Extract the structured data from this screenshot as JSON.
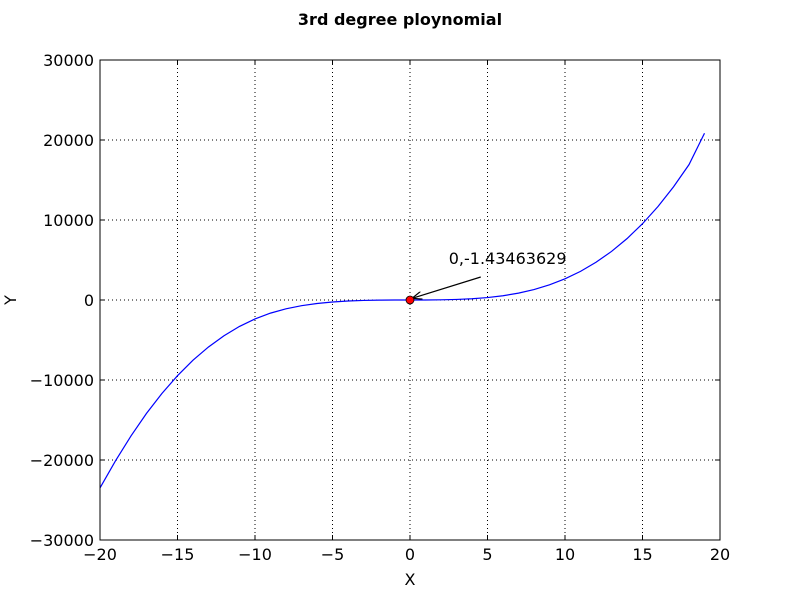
{
  "chart_data": {
    "type": "line",
    "title": "3rd degree ploynomial",
    "xlabel": "X",
    "ylabel": "Y",
    "xlim": [
      -20,
      20
    ],
    "ylim": [
      -30000,
      30000
    ],
    "grid": true,
    "xticks": [
      -20,
      -15,
      -10,
      -5,
      0,
      5,
      10,
      15,
      20
    ],
    "yticks": [
      -30000,
      -20000,
      -10000,
      0,
      10000,
      20000,
      30000
    ],
    "xtick_labels": [
      "−20",
      "−15",
      "−10",
      "−5",
      "0",
      "5",
      "10",
      "15",
      "20"
    ],
    "ytick_labels": [
      "−30000",
      "−20000",
      "−10000",
      "0",
      "10000",
      "20000",
      "30000"
    ],
    "series": [
      {
        "color": "#0000ff",
        "x": [
          -20,
          -19,
          -18,
          -17,
          -16,
          -15,
          -14,
          -13,
          -12,
          -11,
          -10,
          -9,
          -8,
          -7,
          -6,
          -5,
          -4,
          -3,
          -2,
          -1,
          0,
          1,
          2,
          3,
          4,
          5,
          6,
          7,
          8,
          9,
          10,
          11,
          12,
          13,
          14,
          15,
          16,
          17,
          18,
          19
        ],
        "y": [
          -23493,
          -20106.7,
          -16987.1,
          -14175.9,
          -11674.8,
          -9461.3,
          -7528.9,
          -5869.5,
          -4464.2,
          -3302.9,
          -2367.1,
          -1639.1,
          -1100.4,
          -712.9,
          -436.2,
          -247.3,
          -127.0,
          -55.2,
          -18.3,
          -3.4,
          -1.4,
          2.1,
          21.2,
          67.6,
          156.3,
          304.2,
          531.9,
          860.1,
          1308.2,
          1897.1,
          2647.3,
          3579.2,
          4713.5,
          6070.6,
          7671.0,
          9535.5,
          11684.5,
          14138.6,
          16918.6,
          20844
        ]
      }
    ],
    "marker": {
      "x": 0,
      "y": -1.43463629,
      "color": "#ff0000"
    },
    "annotation": {
      "text": "0,-1.43463629",
      "xy": [
        0,
        -1.43463629
      ],
      "xytext": [
        2.5,
        4500
      ]
    }
  }
}
